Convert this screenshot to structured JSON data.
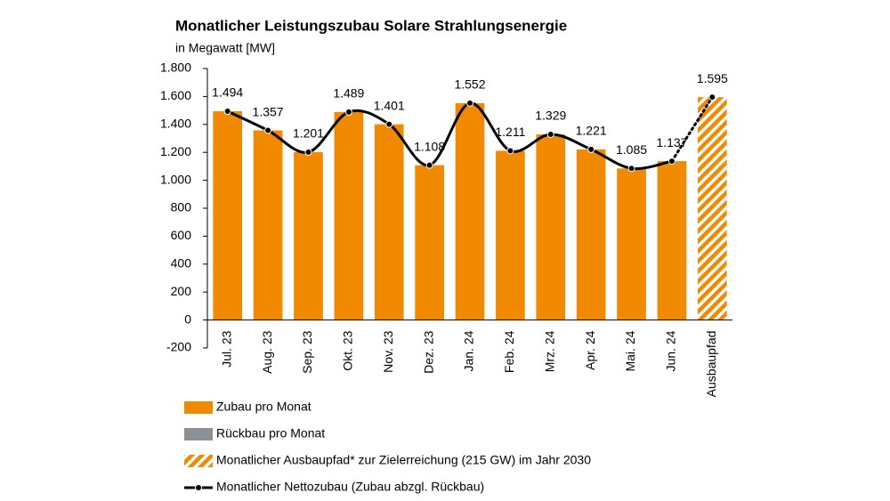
{
  "chart_data": {
    "type": "bar",
    "title": "Monatlicher Leistungszubau Solare Strahlungsenergie",
    "subtitle": "in Megawatt [MW]",
    "categories": [
      "Jul. 23",
      "Aug. 23",
      "Sep. 23",
      "Okt. 23",
      "Nov. 23",
      "Dez. 23",
      "Jan. 24",
      "Feb. 24",
      "Mrz. 24",
      "Apr. 24",
      "Mai. 24",
      "Jun. 24",
      "Ausbaupfad"
    ],
    "series": [
      {
        "name": "Zubau pro Monat",
        "color": "#f18a00",
        "kind": "bar",
        "values": [
          1494,
          1357,
          1201,
          1489,
          1401,
          1108,
          1552,
          1211,
          1329,
          1221,
          1085,
          1137,
          null
        ]
      },
      {
        "name": "Rückbau pro Monat",
        "color": "#8a9096",
        "kind": "bar",
        "values": [
          0,
          0,
          0,
          0,
          0,
          0,
          0,
          0,
          0,
          0,
          0,
          0,
          null
        ]
      },
      {
        "name": "Monatlicher Ausbaupfad* zur Zielerreichung (215 GW) im Jahr 2030",
        "color": "#f18a00",
        "kind": "hatched",
        "values": [
          null,
          null,
          null,
          null,
          null,
          null,
          null,
          null,
          null,
          null,
          null,
          null,
          1595
        ],
        "value_labels": [
          null,
          null,
          null,
          null,
          null,
          null,
          null,
          null,
          null,
          null,
          null,
          null,
          "1.595"
        ]
      },
      {
        "name": "Monatlicher Nettozubau (Zubau abzgl. Rückbau)",
        "color": "#000000",
        "kind": "line",
        "values": [
          1494,
          1357,
          1201,
          1489,
          1401,
          1108,
          1552,
          1211,
          1329,
          1221,
          1085,
          1137,
          null
        ],
        "value_labels": [
          "1.494",
          "1.357",
          "1.201",
          "1.489",
          "1.401",
          "1.108",
          "1.552",
          "1.211",
          "1.329",
          "1.221",
          "1.085",
          "1.137",
          null
        ]
      }
    ],
    "ylim": [
      -200,
      1800
    ],
    "yticks": [
      -200,
      0,
      200,
      400,
      600,
      800,
      {
        "value": 1000,
        "label": "1.000"
      },
      {
        "value": 1200,
        "label": "1.200"
      },
      {
        "value": 1400,
        "label": "1.400"
      },
      {
        "value": 1600,
        "label": "1.600"
      },
      {
        "value": 1800,
        "label": "1.800"
      }
    ]
  }
}
